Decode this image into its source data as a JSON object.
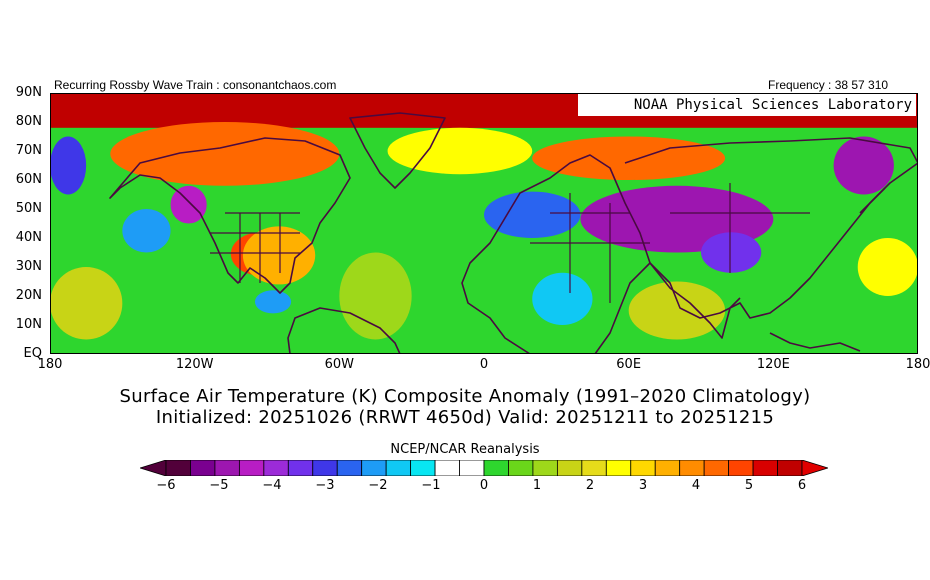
{
  "header": {
    "left_label": "Recurring Rossby Wave Train : consonantchaos.com",
    "right_label": "Frequency : 38 57 310",
    "credit": "NOAA Physical Sciences Laboratory"
  },
  "map": {
    "projection": "cylindrical-equidistant",
    "extent": {
      "lon": [
        -180,
        180
      ],
      "lat": [
        0,
        90
      ]
    },
    "lat_labels": [
      "90N",
      "80N",
      "70N",
      "60N",
      "50N",
      "40N",
      "30N",
      "20N",
      "10N",
      "EQ"
    ],
    "lon_labels": [
      "180",
      "120W",
      "60W",
      "0",
      "60E",
      "120E",
      "180"
    ],
    "anomaly_regions": [
      {
        "lon": [
          -180,
          180
        ],
        "lat": [
          78,
          90
        ],
        "value": 5.8
      },
      {
        "lon": [
          -155,
          -60
        ],
        "lat": [
          58,
          80
        ],
        "value": 4.5
      },
      {
        "lon": [
          -105,
          -80
        ],
        "lat": [
          27,
          42
        ],
        "value": 5.0
      },
      {
        "lon": [
          -100,
          -70
        ],
        "lat": [
          24,
          44
        ],
        "value": 3.5
      },
      {
        "lon": [
          -40,
          20
        ],
        "lat": [
          62,
          78
        ],
        "value": 2.5
      },
      {
        "lon": [
          20,
          100
        ],
        "lat": [
          60,
          75
        ],
        "value": 4.5
      },
      {
        "lon": [
          40,
          120
        ],
        "lat": [
          35,
          58
        ],
        "value": -5.2
      },
      {
        "lon": [
          90,
          115
        ],
        "lat": [
          28,
          42
        ],
        "value": -3.5
      },
      {
        "lon": [
          145,
          170
        ],
        "lat": [
          55,
          75
        ],
        "value": -5.0
      },
      {
        "lon": [
          -180,
          -165
        ],
        "lat": [
          55,
          75
        ],
        "value": -3.0
      },
      {
        "lon": [
          0,
          40
        ],
        "lat": [
          40,
          56
        ],
        "value": -2.5
      },
      {
        "lon": [
          -130,
          -115
        ],
        "lat": [
          45,
          58
        ],
        "value": -4.5
      },
      {
        "lon": [
          -150,
          -130
        ],
        "lat": [
          35,
          50
        ],
        "value": -2.0
      },
      {
        "lon": [
          -95,
          -80
        ],
        "lat": [
          14,
          22
        ],
        "value": -2.0
      },
      {
        "lon": [
          20,
          45
        ],
        "lat": [
          10,
          28
        ],
        "value": -1.5
      },
      {
        "lon": [
          -60,
          -30
        ],
        "lat": [
          5,
          35
        ],
        "value": 1.2
      },
      {
        "lon": [
          -180,
          -150
        ],
        "lat": [
          5,
          30
        ],
        "value": 1.5
      },
      {
        "lon": [
          155,
          180
        ],
        "lat": [
          20,
          40
        ],
        "value": 2.5
      },
      {
        "lon": [
          60,
          100
        ],
        "lat": [
          5,
          25
        ],
        "value": 1.8
      }
    ]
  },
  "title": {
    "line1": "Surface Air Temperature (K) Composite Anomaly (1991–2020 Climatology)",
    "line2": "Initialized: 20251026 (RRWT 4650d) Valid: 20251211 to 20251215"
  },
  "colorbar": {
    "label": "NCEP/NCAR Reanalysis",
    "ticks": [
      "−6",
      "−5",
      "−4",
      "−3",
      "−2",
      "−1",
      "0",
      "1",
      "2",
      "3",
      "4",
      "5",
      "6"
    ],
    "colors": [
      "#52003a",
      "#7a0090",
      "#9d16b0",
      "#b81dc4",
      "#9c2bd8",
      "#7131ec",
      "#3f37e8",
      "#2a64f0",
      "#1e9cf6",
      "#10c8f4",
      "#08e6f2",
      "#ffffff",
      "#ffffff",
      "#2ed62e",
      "#6ad61a",
      "#9ed81a",
      "#c8d416",
      "#e6dc1a",
      "#ffff00",
      "#ffd800",
      "#ffb000",
      "#ff8c00",
      "#ff6800",
      "#ff4400",
      "#d80000",
      "#c00000"
    ],
    "under_color": "#52003a",
    "over_color": "#e00000"
  }
}
